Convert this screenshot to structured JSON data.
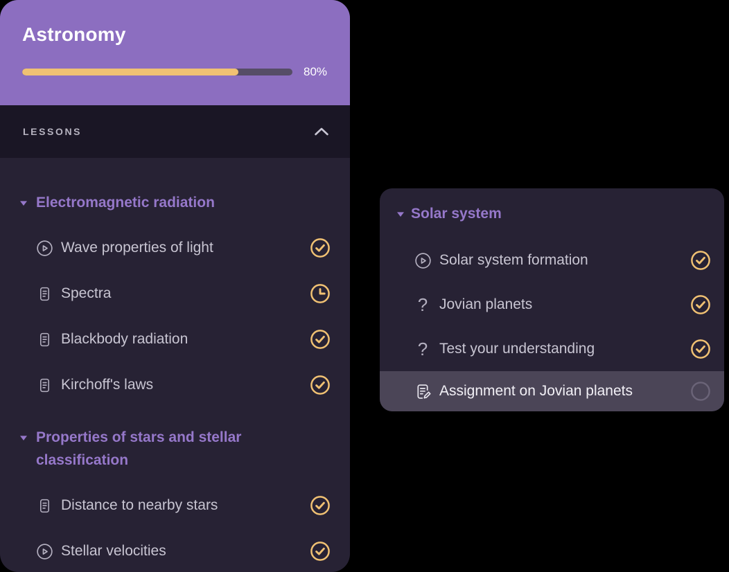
{
  "course": {
    "title": "Astronomy",
    "progress_percent": 80,
    "progress_label": "80%"
  },
  "lessons_header": {
    "label": "LESSONS",
    "collapse_icon": "chevron-up-icon"
  },
  "left_panel": {
    "sections": [
      {
        "title": "Electromagnetic radiation",
        "disclosure_icon": "triangle-down-icon",
        "items": [
          {
            "label": "Wave properties of light",
            "type_icon": "play-circle-icon",
            "status_icon": "check-circle-icon",
            "highlighted": false
          },
          {
            "label": "Spectra",
            "type_icon": "document-icon",
            "status_icon": "clock-icon",
            "highlighted": false
          },
          {
            "label": "Blackbody radiation",
            "type_icon": "document-icon",
            "status_icon": "check-circle-icon",
            "highlighted": false
          },
          {
            "label": "Kirchoff's laws",
            "type_icon": "document-icon",
            "status_icon": "check-circle-icon",
            "highlighted": false
          }
        ]
      },
      {
        "title": "Properties of stars and stellar classification",
        "disclosure_icon": "triangle-down-icon",
        "items": [
          {
            "label": "Distance to nearby stars",
            "type_icon": "document-icon",
            "status_icon": "check-circle-icon",
            "highlighted": false
          },
          {
            "label": "Stellar velocities",
            "type_icon": "play-circle-icon",
            "status_icon": "check-circle-icon",
            "highlighted": false
          }
        ]
      }
    ]
  },
  "floating_panel": {
    "section": {
      "title": "Solar system",
      "disclosure_icon": "triangle-down-icon",
      "items": [
        {
          "label": "Solar system formation",
          "type_icon": "play-circle-icon",
          "status_icon": "check-circle-icon",
          "highlighted": false
        },
        {
          "label": "Jovian planets",
          "type_icon": "question-mark-icon",
          "status_icon": "check-circle-icon",
          "highlighted": false
        },
        {
          "label": "Test your understanding",
          "type_icon": "question-mark-icon",
          "status_icon": "check-circle-icon",
          "highlighted": false
        },
        {
          "label": "Assignment on Jovian planets",
          "type_icon": "assignment-icon",
          "status_icon": "empty-circle-icon",
          "highlighted": true
        }
      ]
    }
  },
  "colors": {
    "header_purple": "#8c6ec0",
    "panel_background": "#272234",
    "lessons_bar_background": "#1a1625",
    "section_title_purple": "#9678ca",
    "item_text": "#c8c5d2",
    "icon_gray": "#b4b0c0",
    "status_gold": "#f0c173",
    "progress_fill_gold": "#f0c173",
    "progress_track": "#564d67",
    "highlight_row_background": "#4b4557",
    "incomplete_ring": "#6b6478"
  }
}
